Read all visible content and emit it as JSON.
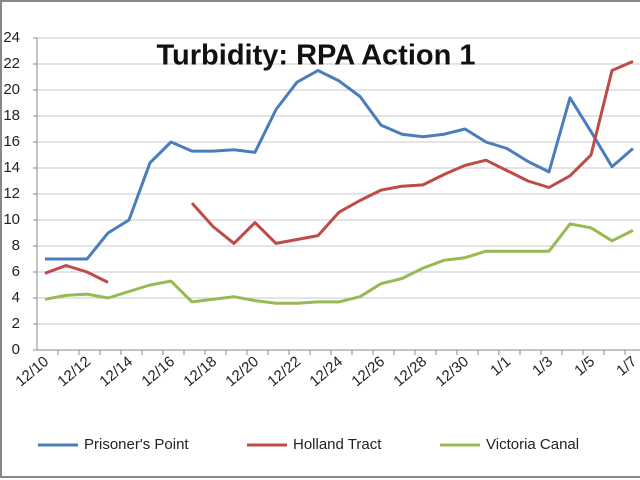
{
  "chart_data": {
    "type": "line",
    "title": "Turbidity: RPA Action 1",
    "categories": [
      "12/10",
      null,
      "12/12",
      null,
      "12/14",
      null,
      "12/16",
      null,
      "12/18",
      null,
      "12/20",
      null,
      "12/22",
      null,
      "12/24",
      null,
      "12/26",
      null,
      "12/28",
      null,
      "12/30",
      null,
      "1/1",
      null,
      "1/3",
      null,
      "1/5",
      null,
      "1/7"
    ],
    "series": [
      {
        "name": "Prisoner's Point",
        "color": "#4a7ebb",
        "values": [
          7,
          7,
          7,
          9,
          10,
          14.4,
          16,
          15.3,
          15.3,
          15.4,
          15.2,
          18.5,
          20.6,
          21.5,
          20.7,
          19.5,
          17.3,
          16.6,
          16.4,
          16.6,
          17.0,
          16.0,
          15.5,
          14.5,
          13.7,
          19.4,
          16.8,
          14.1,
          15.5
        ]
      },
      {
        "name": "Holland Tract",
        "color": "#be4b48",
        "values": [
          5.9,
          6.5,
          6,
          5.2,
          null,
          null,
          null,
          11.3,
          9.5,
          8.2,
          9.8,
          8.2,
          8.5,
          8.8,
          10.6,
          11.5,
          12.3,
          12.6,
          12.7,
          13.5,
          14.2,
          14.6,
          13.8,
          13.0,
          12.5,
          13.4,
          15.0,
          21.5,
          22.2
        ]
      },
      {
        "name": "Victoria Canal",
        "color": "#98b954",
        "values": [
          3.9,
          4.2,
          4.3,
          4.0,
          4.5,
          5.0,
          5.3,
          3.7,
          3.9,
          4.1,
          3.8,
          3.6,
          3.6,
          3.7,
          3.7,
          4.1,
          5.1,
          5.5,
          6.3,
          6.9,
          7.1,
          7.6,
          7.6,
          7.6,
          7.6,
          9.7,
          9.4,
          8.4,
          9.2
        ]
      }
    ],
    "ylim": [
      0,
      24
    ],
    "yticks": [
      0,
      2,
      4,
      6,
      8,
      10,
      12,
      14,
      16,
      18,
      20,
      22,
      24
    ],
    "grid": true,
    "legend": "bottom"
  }
}
